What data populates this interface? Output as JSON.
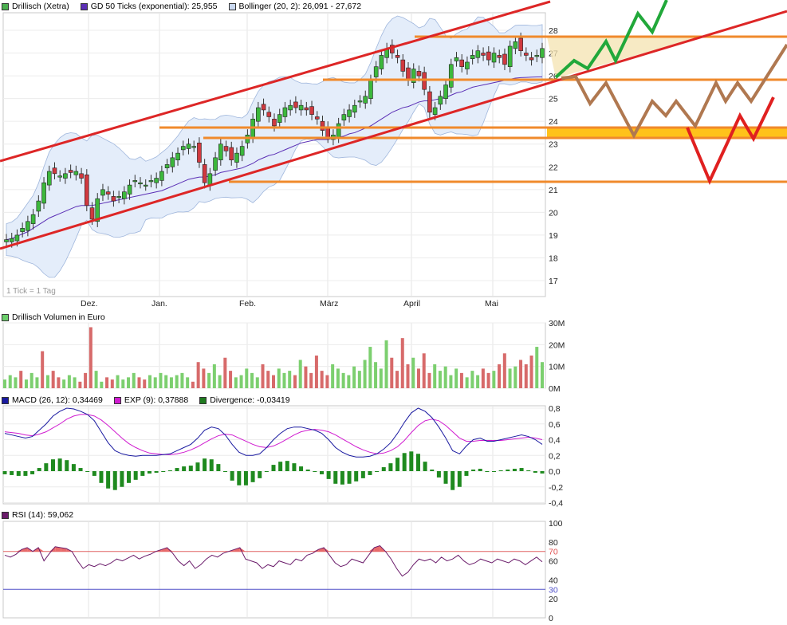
{
  "chart_data": [
    {
      "type": "candlestick",
      "panel": "price",
      "legend": [
        {
          "label": "Drillisch (Xetra)",
          "color": "#4caf50"
        },
        {
          "label": "GD 50 Ticks (exponential): 25,955",
          "color": "#5b2fb5"
        },
        {
          "label": "Bollinger (20, 2): 26,091 - 27,672",
          "color": "#c9d8f0"
        }
      ],
      "y_ticks": [
        "28",
        "27",
        "26",
        "25",
        "24",
        "23",
        "22",
        "21",
        "20",
        "19",
        "18",
        "17"
      ],
      "x_ticks": [
        "Dez.",
        "Jan.",
        "Feb.",
        "März",
        "April",
        "Mai"
      ],
      "note": "1 Tick = 1 Tag",
      "close": [
        18.8,
        18.85,
        19.0,
        19.3,
        19.6,
        19.9,
        20.5,
        21.3,
        21.8,
        21.7,
        21.6,
        21.7,
        21.75,
        21.8,
        21.5,
        20.3,
        19.7,
        20.6,
        21.0,
        20.8,
        20.5,
        20.7,
        20.9,
        21.2,
        21.4,
        21.3,
        21.2,
        21.4,
        21.5,
        21.8,
        22.1,
        22.4,
        22.6,
        22.9,
        23.0,
        22.9,
        22.2,
        21.3,
        21.7,
        22.4,
        23.0,
        22.7,
        22.3,
        22.6,
        22.9,
        23.4,
        24.1,
        24.6,
        24.5,
        24.2,
        23.8,
        24.3,
        24.6,
        24.7,
        24.6,
        24.7,
        24.5,
        24.3,
        24.1,
        23.6,
        23.3,
        23.4,
        23.9,
        24.3,
        24.5,
        24.7,
        24.9,
        25.1,
        25.8,
        26.4,
        26.9,
        27.2,
        27.0,
        26.8,
        26.2,
        25.8,
        26.3,
        26.0,
        25.4,
        24.4,
        24.6,
        25.1,
        25.6,
        26.5,
        26.8,
        26.4,
        26.6,
        26.9,
        27.1,
        26.9,
        26.7,
        27.0,
        26.8,
        26.5,
        27.3,
        27.5,
        27.1,
        26.9,
        26.7,
        26.9,
        27.2
      ],
      "ema50": [
        18.8,
        18.85,
        18.95,
        19.05,
        19.15,
        19.3,
        19.45,
        19.6,
        19.75,
        19.85,
        19.95,
        20.05,
        20.15,
        20.25,
        20.3,
        20.3,
        20.3,
        20.35,
        20.4,
        20.45,
        20.5,
        20.55,
        20.6,
        20.65,
        20.7,
        20.75,
        20.8,
        20.85,
        20.9,
        20.95,
        21.05,
        21.15,
        21.25,
        21.35,
        21.45,
        21.5,
        21.55,
        21.55,
        21.6,
        21.65,
        21.75,
        21.8,
        21.85,
        21.9,
        21.95,
        22.05,
        22.15,
        22.3,
        22.4,
        22.5,
        22.55,
        22.65,
        22.75,
        22.85,
        22.95,
        23.05,
        23.1,
        23.15,
        23.2,
        23.2,
        23.2,
        23.25,
        23.3,
        23.35,
        23.45,
        23.5,
        23.6,
        23.7,
        23.8,
        23.95,
        24.1,
        24.25,
        24.4,
        24.5,
        24.6,
        24.65,
        24.75,
        24.85,
        24.9,
        24.9,
        24.95,
        25.0,
        25.05,
        25.15,
        25.25,
        25.3,
        25.4,
        25.5,
        25.55,
        25.6,
        25.65,
        25.7,
        25.75,
        25.8,
        25.85,
        25.9,
        25.92,
        25.93,
        25.94,
        25.95,
        25.955
      ],
      "bollinger_upper": 27.672,
      "bollinger_lower": 26.091
    },
    {
      "type": "bar",
      "panel": "volume",
      "legend": [
        {
          "label": "Drillisch Volumen in Euro",
          "color": "#6ccf6c"
        }
      ],
      "y_ticks": [
        "30M",
        "20M",
        "10M",
        "0M"
      ],
      "values_m": [
        4,
        6,
        5,
        8,
        4,
        7,
        5,
        17,
        6,
        8,
        5,
        4,
        6,
        5,
        3,
        7,
        28,
        8,
        3,
        5,
        4,
        6,
        4,
        5,
        7,
        5,
        4,
        6,
        5,
        7,
        6,
        5,
        6,
        7,
        5,
        3,
        12,
        9,
        7,
        11,
        6,
        14,
        8,
        5,
        6,
        9,
        7,
        5,
        11,
        8,
        6,
        9,
        7,
        8,
        6,
        13,
        10,
        7,
        15,
        8,
        6,
        11,
        9,
        7,
        6,
        10,
        8,
        13,
        19,
        12,
        9,
        22,
        14,
        8,
        23,
        11,
        14,
        9,
        16,
        7,
        11,
        8,
        10,
        6,
        9,
        7,
        5,
        8,
        6,
        9,
        7,
        8,
        11,
        16,
        9,
        10,
        13,
        11,
        15,
        19,
        12
      ],
      "rising": [
        true,
        true,
        true,
        false,
        true,
        true,
        true,
        false,
        true,
        false,
        false,
        true,
        true,
        true,
        false,
        false,
        false,
        true,
        true,
        false,
        false,
        true,
        true,
        true,
        true,
        false,
        false,
        true,
        true,
        true,
        true,
        true,
        true,
        true,
        true,
        false,
        false,
        false,
        true,
        true,
        true,
        false,
        false,
        true,
        true,
        true,
        true,
        true,
        false,
        false,
        false,
        true,
        true,
        true,
        false,
        true,
        false,
        false,
        false,
        false,
        false,
        true,
        true,
        true,
        true,
        true,
        true,
        true,
        true,
        true,
        true,
        true,
        false,
        false,
        false,
        false,
        true,
        false,
        false,
        false,
        true,
        true,
        true,
        true,
        true,
        false,
        true,
        true,
        true,
        false,
        false,
        true,
        false,
        false,
        true,
        true,
        false,
        false,
        false,
        true,
        true
      ]
    },
    {
      "type": "line",
      "panel": "macd",
      "legend": [
        {
          "label": "MACD (26, 12): 0,34469",
          "color": "#1a1aa0"
        },
        {
          "label": "EXP (9): 0,37888",
          "color": "#d01bd0"
        },
        {
          "label": "Divergence: -0,03419",
          "color": "#1f7a1f"
        }
      ],
      "y_ticks": [
        "0,8",
        "0,6",
        "0,4",
        "0,2",
        "0,0",
        "-0,2",
        "-0,4"
      ],
      "macd": [
        0.48,
        0.46,
        0.44,
        0.42,
        0.44,
        0.52,
        0.6,
        0.7,
        0.76,
        0.8,
        0.79,
        0.76,
        0.72,
        0.64,
        0.5,
        0.36,
        0.26,
        0.22,
        0.2,
        0.19,
        0.2,
        0.2,
        0.2,
        0.21,
        0.22,
        0.26,
        0.3,
        0.34,
        0.42,
        0.52,
        0.56,
        0.54,
        0.46,
        0.34,
        0.24,
        0.2,
        0.2,
        0.22,
        0.3,
        0.4,
        0.48,
        0.54,
        0.56,
        0.56,
        0.54,
        0.52,
        0.48,
        0.4,
        0.3,
        0.24,
        0.2,
        0.18,
        0.18,
        0.19,
        0.22,
        0.28,
        0.36,
        0.48,
        0.62,
        0.74,
        0.8,
        0.76,
        0.68,
        0.56,
        0.42,
        0.26,
        0.22,
        0.32,
        0.4,
        0.42,
        0.38,
        0.38,
        0.4,
        0.42,
        0.44,
        0.46,
        0.44,
        0.4,
        0.34
      ],
      "signal": [
        0.5,
        0.49,
        0.48,
        0.46,
        0.45,
        0.47,
        0.5,
        0.55,
        0.6,
        0.66,
        0.7,
        0.72,
        0.72,
        0.7,
        0.65,
        0.58,
        0.5,
        0.42,
        0.35,
        0.3,
        0.26,
        0.23,
        0.22,
        0.21,
        0.21,
        0.22,
        0.24,
        0.27,
        0.31,
        0.36,
        0.41,
        0.45,
        0.47,
        0.46,
        0.42,
        0.38,
        0.34,
        0.31,
        0.3,
        0.32,
        0.36,
        0.41,
        0.46,
        0.5,
        0.52,
        0.53,
        0.52,
        0.5,
        0.46,
        0.41,
        0.36,
        0.31,
        0.27,
        0.24,
        0.22,
        0.23,
        0.26,
        0.31,
        0.39,
        0.49,
        0.58,
        0.64,
        0.66,
        0.64,
        0.58,
        0.5,
        0.42,
        0.38,
        0.38,
        0.39,
        0.39,
        0.39,
        0.39,
        0.4,
        0.41,
        0.42,
        0.43,
        0.42,
        0.4
      ],
      "divergence": [
        -0.04,
        -0.05,
        -0.06,
        -0.06,
        -0.04,
        0.04,
        0.1,
        0.15,
        0.16,
        0.14,
        0.09,
        0.04,
        0.0,
        -0.06,
        -0.15,
        -0.22,
        -0.24,
        -0.2,
        -0.15,
        -0.11,
        -0.06,
        -0.03,
        -0.02,
        0.0,
        0.01,
        0.04,
        0.06,
        0.07,
        0.11,
        0.16,
        0.15,
        0.09,
        -0.01,
        -0.12,
        -0.18,
        -0.18,
        -0.14,
        -0.09,
        0.0,
        0.08,
        0.12,
        0.13,
        0.1,
        0.06,
        0.02,
        -0.01,
        -0.04,
        -0.1,
        -0.16,
        -0.17,
        -0.16,
        -0.13,
        -0.09,
        -0.05,
        0.0,
        0.05,
        0.1,
        0.17,
        0.23,
        0.25,
        0.22,
        0.12,
        0.02,
        -0.08,
        -0.16,
        -0.24,
        -0.2,
        -0.06,
        0.02,
        0.03,
        -0.01,
        -0.01,
        0.01,
        0.02,
        0.03,
        0.04,
        0.01,
        -0.02,
        -0.03
      ]
    },
    {
      "type": "line",
      "panel": "rsi",
      "legend": [
        {
          "label": "RSI (14): 59,062",
          "color": "#6a1b6a"
        }
      ],
      "y_ticks": [
        "100",
        "80",
        "70",
        "60",
        "40",
        "30",
        "20",
        "0"
      ],
      "overbought": 70,
      "oversold": 30,
      "overbought_label": "70",
      "oversold_label": "30",
      "values": [
        66,
        64,
        67,
        72,
        74,
        70,
        74,
        60,
        68,
        75,
        74,
        73,
        70,
        60,
        52,
        56,
        54,
        57,
        55,
        58,
        62,
        60,
        63,
        66,
        62,
        65,
        67,
        70,
        72,
        74,
        68,
        60,
        55,
        60,
        52,
        56,
        62,
        66,
        64,
        68,
        70,
        72,
        74,
        62,
        60,
        58,
        52,
        56,
        54,
        60,
        58,
        56,
        62,
        60,
        66,
        68,
        72,
        74,
        66,
        58,
        54,
        56,
        62,
        60,
        58,
        66,
        74,
        76,
        70,
        62,
        52,
        44,
        48,
        56,
        62,
        60,
        62,
        58,
        64,
        60,
        62,
        66,
        60,
        56,
        58,
        62,
        60,
        58,
        62,
        60,
        58,
        62,
        60,
        56,
        60,
        64,
        59
      ]
    }
  ],
  "overlay": {
    "channel_upper_label": "",
    "zones": [
      "upper resistance band",
      "support band"
    ]
  }
}
